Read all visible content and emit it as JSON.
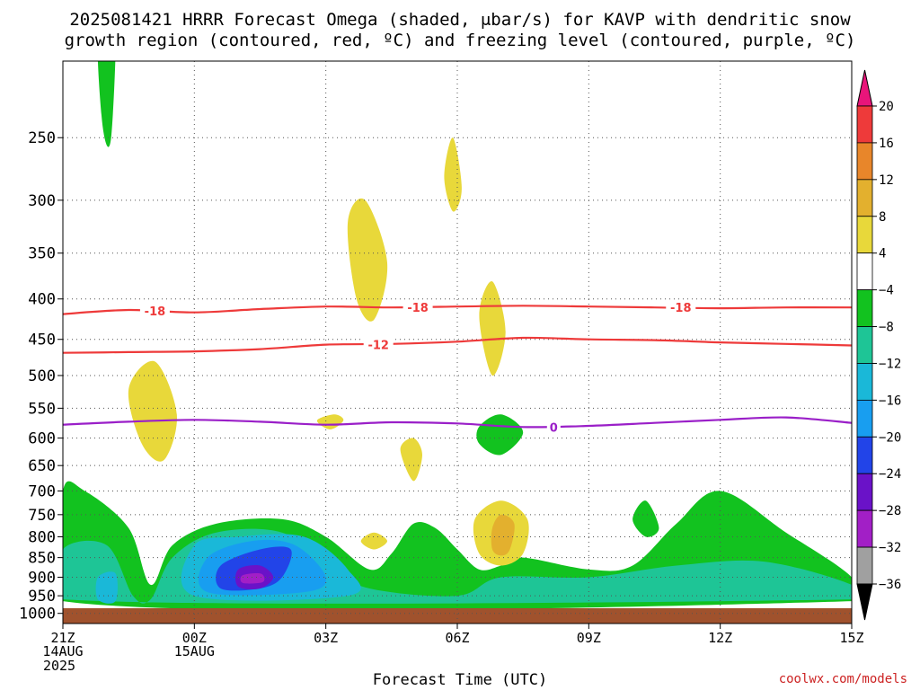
{
  "title_line1": "2025081421 HRRR Forecast Omega (shaded, μbar/s) for KAVP with dendritic snow",
  "title_line2": "growth region (contoured, red, ºC) and freezing level (contoured, purple, ºC)",
  "xlabel": "Forecast Time (UTC)",
  "credit": "coolwx.com/models",
  "chart_data": {
    "type": "heatmap",
    "y_axis": {
      "label": "",
      "unit": "mb",
      "ticks": [
        250,
        300,
        350,
        400,
        450,
        500,
        550,
        600,
        650,
        700,
        750,
        800,
        850,
        900,
        950,
        1000
      ],
      "range": [
        200,
        1030
      ]
    },
    "x_axis": {
      "ticks": [
        {
          "hour": 0,
          "label": "21Z",
          "sub1": "14AUG",
          "sub2": "2025"
        },
        {
          "hour": 3,
          "label": "00Z",
          "sub1": "15AUG",
          "sub2": ""
        },
        {
          "hour": 6,
          "label": "03Z",
          "sub1": "",
          "sub2": ""
        },
        {
          "hour": 9,
          "label": "06Z",
          "sub1": "",
          "sub2": ""
        },
        {
          "hour": 12,
          "label": "09Z",
          "sub1": "",
          "sub2": ""
        },
        {
          "hour": 15,
          "label": "12Z",
          "sub1": "",
          "sub2": ""
        },
        {
          "hour": 18,
          "label": "15Z",
          "sub1": "",
          "sub2": ""
        }
      ],
      "range": [
        0,
        18
      ]
    },
    "grid": true,
    "colorbar": {
      "labels": [
        "20",
        "16",
        "12",
        "8",
        "4",
        "−4",
        "−8",
        "−12",
        "−16",
        "−20",
        "−24",
        "−28",
        "−32",
        "−36"
      ],
      "colors": [
        "#e8157a",
        "#ee3a3a",
        "#e8862a",
        "#e3b02e",
        "#e8d83a",
        "#ffffff",
        "#12c21f",
        "#1ec596",
        "#1ab8d8",
        "#189ef0",
        "#2244e8",
        "#6a12c8",
        "#a21fc6",
        "#a0a0a0",
        "#000000"
      ]
    },
    "contours": [
      {
        "label": "-18",
        "color": "#ee3a3a",
        "points": [
          [
            0,
            418
          ],
          [
            1.5,
            413
          ],
          [
            3,
            416
          ],
          [
            4.5,
            412
          ],
          [
            6,
            409
          ],
          [
            7.5,
            410
          ],
          [
            9,
            409
          ],
          [
            10.5,
            408
          ],
          [
            12,
            409
          ],
          [
            13.5,
            410
          ],
          [
            15,
            411
          ],
          [
            16.5,
            410
          ],
          [
            18,
            410
          ]
        ]
      },
      {
        "label": "-12",
        "color": "#ee3a3a",
        "points": [
          [
            0,
            468
          ],
          [
            1.5,
            467
          ],
          [
            3,
            466
          ],
          [
            4.5,
            463
          ],
          [
            6,
            457
          ],
          [
            7.5,
            456
          ],
          [
            9,
            453
          ],
          [
            10.5,
            448
          ],
          [
            12,
            450
          ],
          [
            13.5,
            451
          ],
          [
            15,
            454
          ],
          [
            16.5,
            456
          ],
          [
            18,
            458
          ]
        ]
      },
      {
        "label": "0",
        "color": "#9a1fc8",
        "points": [
          [
            0,
            577
          ],
          [
            1.5,
            572
          ],
          [
            3,
            569
          ],
          [
            4.5,
            572
          ],
          [
            6,
            577
          ],
          [
            7.5,
            573
          ],
          [
            9,
            575
          ],
          [
            10.5,
            581
          ],
          [
            12,
            579
          ],
          [
            13.5,
            574
          ],
          [
            15,
            569
          ],
          [
            16.5,
            565
          ],
          [
            18,
            574
          ]
        ]
      }
    ],
    "contour_labels": [
      {
        "text": "-18",
        "hour": 2.1,
        "p": 414,
        "color": "#ee3a3a"
      },
      {
        "text": "-18",
        "hour": 8.1,
        "p": 410,
        "color": "#ee3a3a"
      },
      {
        "text": "-18",
        "hour": 14.1,
        "p": 410,
        "color": "#ee3a3a"
      },
      {
        "text": "-12",
        "hour": 7.2,
        "p": 457,
        "color": "#ee3a3a"
      },
      {
        "text": "0",
        "hour": 11.2,
        "p": 581,
        "color": "#9a1fc8"
      }
    ],
    "shaded_regions": [
      {
        "value": -6,
        "color": "#12c21f",
        "points": [
          [
            0,
            700
          ],
          [
            0.5,
            700
          ],
          [
            1.5,
            780
          ],
          [
            2,
            920
          ],
          [
            2.5,
            820
          ],
          [
            3.5,
            770
          ],
          [
            5,
            760
          ],
          [
            6,
            800
          ],
          [
            7,
            880
          ],
          [
            7.5,
            840
          ],
          [
            8,
            770
          ],
          [
            8.5,
            780
          ],
          [
            9,
            830
          ],
          [
            9.5,
            880
          ],
          [
            10,
            870
          ],
          [
            10.5,
            850
          ],
          [
            12,
            880
          ],
          [
            13,
            870
          ],
          [
            14,
            770
          ],
          [
            15,
            700
          ],
          [
            16.5,
            790
          ],
          [
            18,
            900
          ],
          [
            18,
            965
          ],
          [
            0,
            965
          ]
        ]
      },
      {
        "value": -6,
        "color": "#12c21f",
        "points": [
          [
            0.8,
            180
          ],
          [
            1.2,
            170
          ],
          [
            1.1,
            250
          ],
          [
            0.9,
            240
          ]
        ]
      },
      {
        "value": -6,
        "color": "#12c21f",
        "points": [
          [
            9.5,
            580
          ],
          [
            10,
            560
          ],
          [
            10.5,
            590
          ],
          [
            10,
            630
          ],
          [
            9.5,
            610
          ]
        ]
      },
      {
        "value": -6,
        "color": "#12c21f",
        "points": [
          [
            13,
            760
          ],
          [
            13.3,
            720
          ],
          [
            13.6,
            780
          ],
          [
            13.3,
            800
          ]
        ]
      },
      {
        "value": -10,
        "color": "#1ec596",
        "points": [
          [
            0,
            830
          ],
          [
            1,
            820
          ],
          [
            1.6,
            950
          ],
          [
            2,
            960
          ],
          [
            2.5,
            850
          ],
          [
            3.5,
            790
          ],
          [
            5,
            790
          ],
          [
            6,
            870
          ],
          [
            7,
            930
          ],
          [
            9,
            950
          ],
          [
            10,
            900
          ],
          [
            12,
            900
          ],
          [
            14,
            870
          ],
          [
            16,
            860
          ],
          [
            18,
            920
          ],
          [
            18,
            960
          ],
          [
            0,
            960
          ]
        ]
      },
      {
        "value": -14,
        "color": "#1ab8d8",
        "points": [
          [
            0.8,
            900
          ],
          [
            1.2,
            890
          ],
          [
            1.2,
            965
          ],
          [
            0.8,
            960
          ]
        ]
      },
      {
        "value": -14,
        "color": "#1ab8d8",
        "points": [
          [
            3,
            820
          ],
          [
            4,
            800
          ],
          [
            5.5,
            800
          ],
          [
            6.5,
            880
          ],
          [
            6.5,
            950
          ],
          [
            3,
            950
          ]
        ]
      },
      {
        "value": -18,
        "color": "#189ef0",
        "points": [
          [
            3.3,
            850
          ],
          [
            4.3,
            810
          ],
          [
            5.3,
            820
          ],
          [
            6,
            900
          ],
          [
            5.5,
            940
          ],
          [
            3.3,
            940
          ]
        ]
      },
      {
        "value": -22,
        "color": "#2244e8",
        "points": [
          [
            3.6,
            870
          ],
          [
            4.5,
            830
          ],
          [
            5.2,
            830
          ],
          [
            5,
            900
          ],
          [
            4.5,
            930
          ],
          [
            3.6,
            930
          ]
        ]
      },
      {
        "value": -26,
        "color": "#6a12c8",
        "points": [
          [
            4,
            880
          ],
          [
            4.5,
            870
          ],
          [
            4.8,
            900
          ],
          [
            4.5,
            930
          ],
          [
            4,
            925
          ]
        ]
      },
      {
        "value": -30,
        "color": "#a21fc6",
        "points": [
          [
            4.1,
            895
          ],
          [
            4.5,
            890
          ],
          [
            4.6,
            905
          ],
          [
            4.5,
            915
          ],
          [
            4.1,
            915
          ]
        ]
      },
      {
        "value": 6,
        "color": "#e8d83a",
        "points": [
          [
            1.5,
            520
          ],
          [
            2.1,
            480
          ],
          [
            2.6,
            560
          ],
          [
            2.3,
            640
          ],
          [
            1.8,
            610
          ]
        ]
      },
      {
        "value": 6,
        "color": "#e8d83a",
        "points": [
          [
            6.5,
            320
          ],
          [
            6.9,
            300
          ],
          [
            7.4,
            360
          ],
          [
            7.1,
            425
          ],
          [
            6.7,
            400
          ]
        ]
      },
      {
        "value": 6,
        "color": "#e8d83a",
        "points": [
          [
            8.7,
            280
          ],
          [
            8.9,
            250
          ],
          [
            9.1,
            290
          ],
          [
            8.9,
            310
          ]
        ]
      },
      {
        "value": 6,
        "color": "#e8d83a",
        "points": [
          [
            9.5,
            420
          ],
          [
            9.8,
            380
          ],
          [
            10.1,
            440
          ],
          [
            9.8,
            500
          ]
        ]
      },
      {
        "value": 6,
        "color": "#e8d83a",
        "points": [
          [
            5.8,
            570
          ],
          [
            6.2,
            560
          ],
          [
            6.4,
            570
          ],
          [
            6.1,
            585
          ]
        ]
      },
      {
        "value": 6,
        "color": "#e8d83a",
        "points": [
          [
            7.7,
            620
          ],
          [
            8,
            600
          ],
          [
            8.2,
            630
          ],
          [
            8,
            680
          ]
        ]
      },
      {
        "value": 6,
        "color": "#e8d83a",
        "points": [
          [
            6.8,
            810
          ],
          [
            7.1,
            790
          ],
          [
            7.4,
            810
          ],
          [
            7.1,
            830
          ]
        ]
      },
      {
        "value": 6,
        "color": "#e8d83a",
        "points": [
          [
            9.4,
            760
          ],
          [
            10,
            720
          ],
          [
            10.6,
            760
          ],
          [
            10.5,
            840
          ],
          [
            10,
            870
          ],
          [
            9.5,
            840
          ]
        ]
      },
      {
        "value": 10,
        "color": "#e3b02e",
        "points": [
          [
            9.8,
            780
          ],
          [
            10,
            750
          ],
          [
            10.3,
            770
          ],
          [
            10.2,
            830
          ],
          [
            10,
            845
          ],
          [
            9.8,
            830
          ]
        ]
      },
      {
        "value": 6,
        "color": "#e8d83a",
        "points": [
          [
            2,
            570
          ],
          [
            2.1,
            560
          ],
          [
            2.2,
            580
          ]
        ]
      }
    ],
    "surface": {
      "p_top": 985,
      "color": "#a0522d"
    }
  }
}
